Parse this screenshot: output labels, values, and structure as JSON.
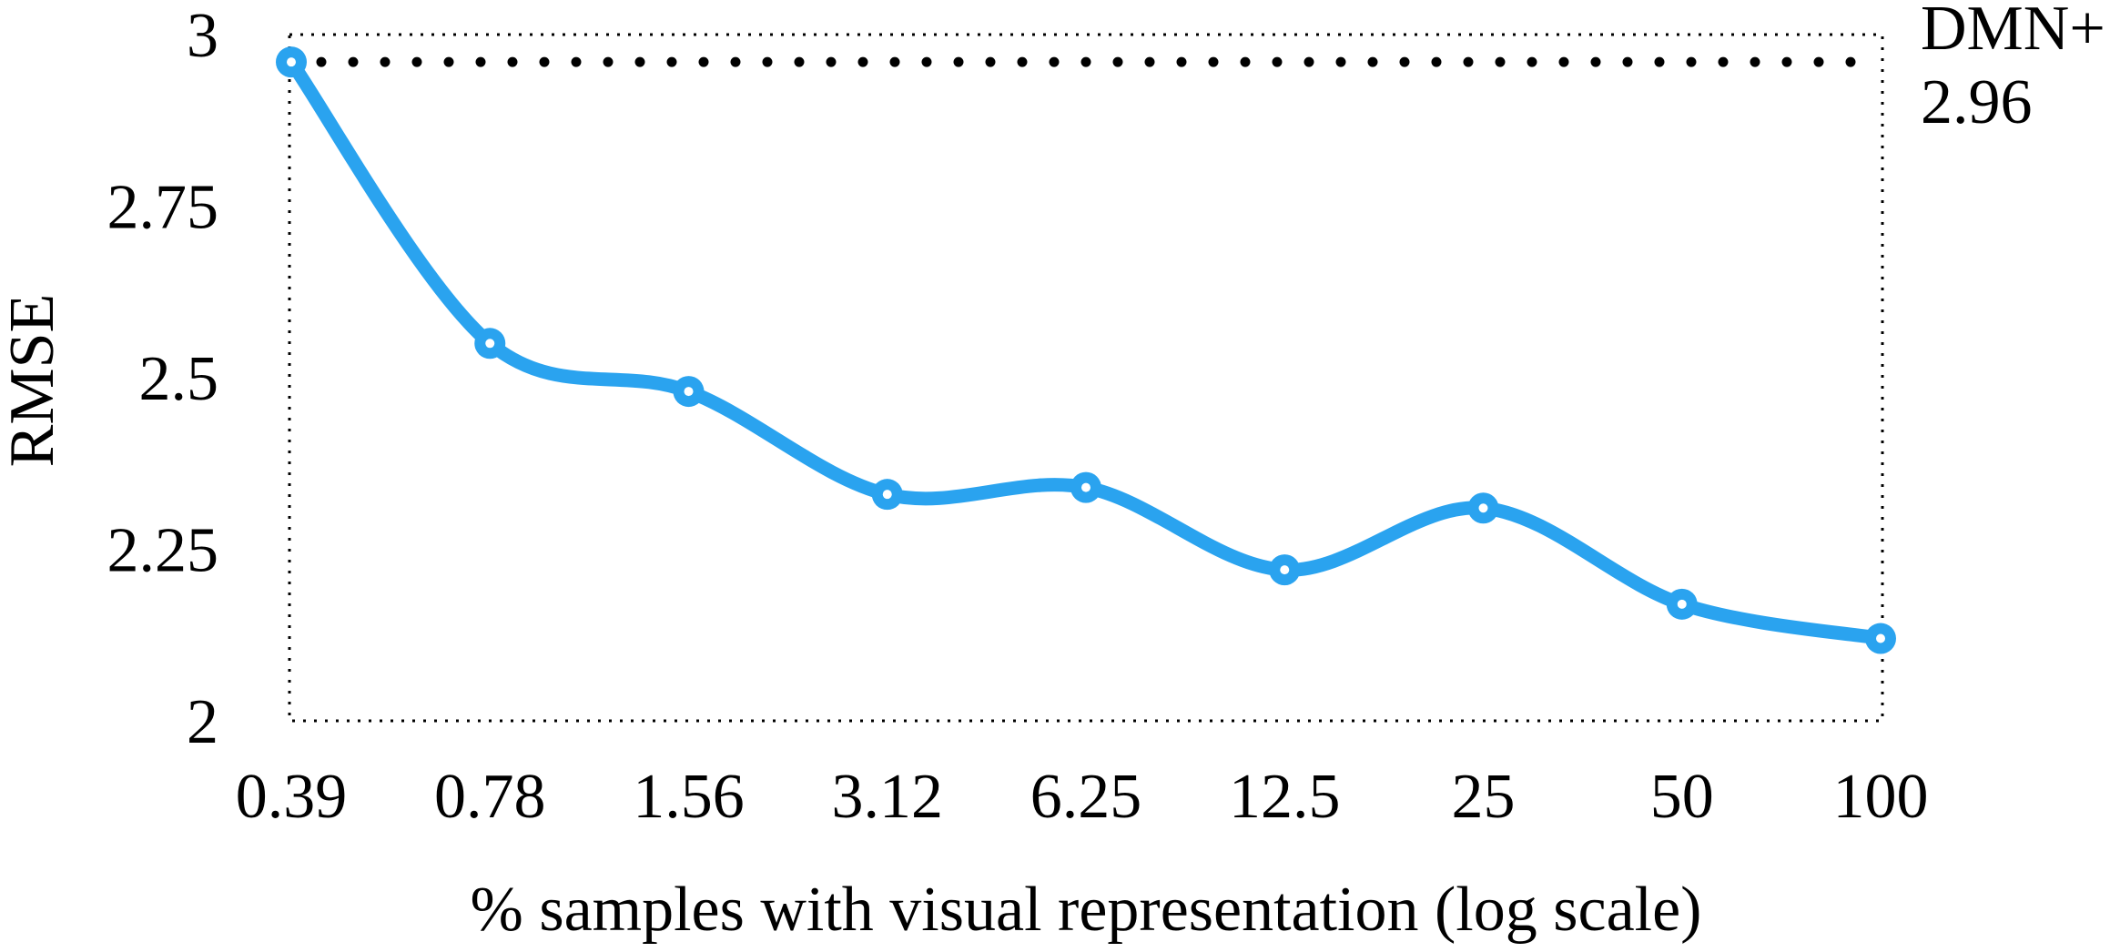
{
  "chart_data": {
    "type": "line",
    "xlabel": "% samples with visual representation (log scale)",
    "ylabel": "RMSE",
    "x_scale": "log",
    "ylim": [
      2,
      3
    ],
    "yticks": [
      "2",
      "2.25",
      "2.5",
      "2.75",
      "3"
    ],
    "categories": [
      "0.39",
      "0.78",
      "1.56",
      "3.12",
      "6.25",
      "12.5",
      "25",
      "50",
      "100"
    ],
    "series": [
      {
        "values": [
          2.96,
          2.55,
          2.48,
          2.33,
          2.34,
          2.22,
          2.31,
          2.17,
          2.12
        ],
        "color": "#2aa3ef"
      }
    ],
    "baseline": {
      "name": "DMN+",
      "value": 2.96,
      "value_label": "2.96",
      "style": "dotted",
      "color": "#000000"
    },
    "grid": false,
    "frame": "dotted"
  }
}
